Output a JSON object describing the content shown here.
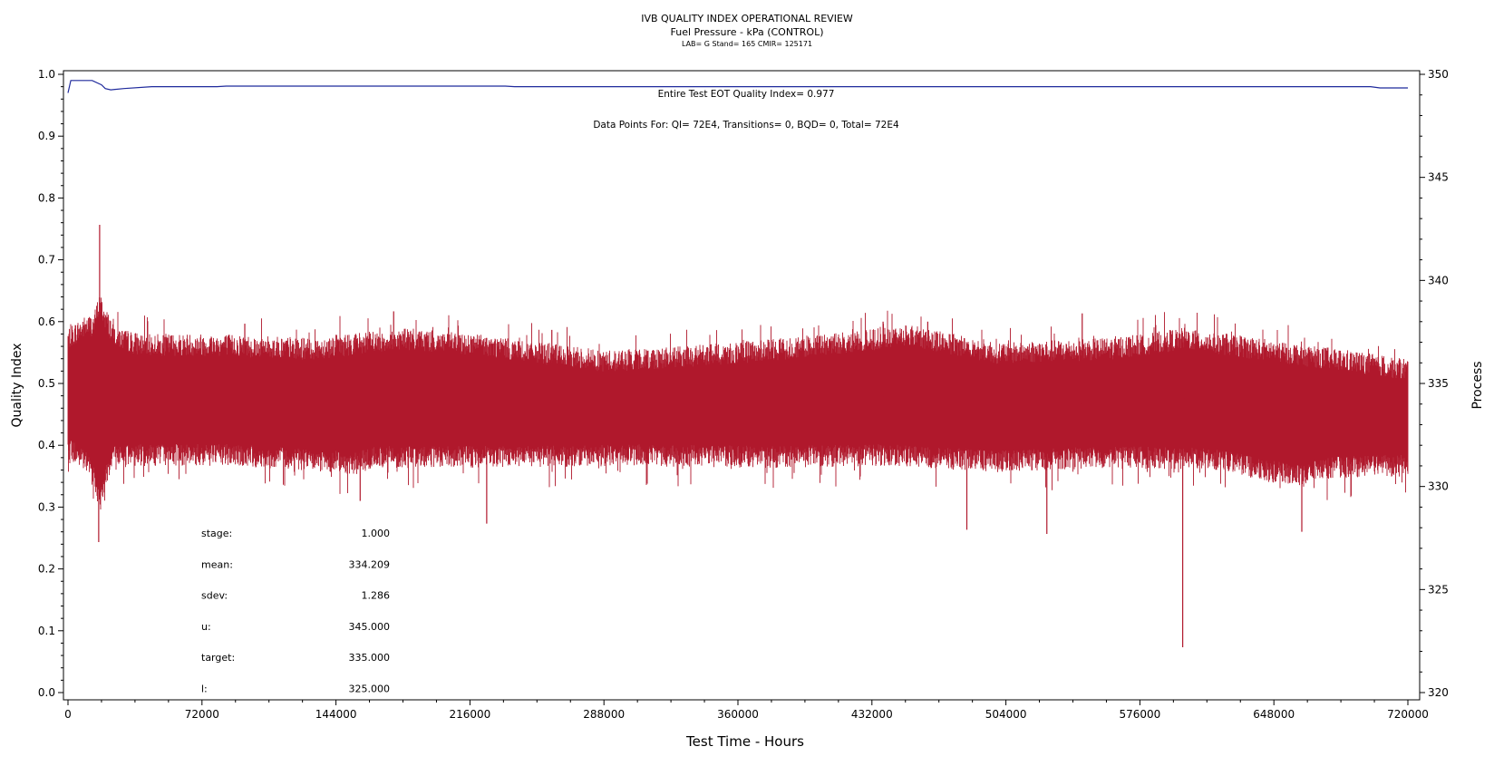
{
  "header": {
    "title": "IVB QUALITY INDEX OPERATIONAL REVIEW",
    "subtitle": "Fuel Pressure - kPa (CONTROL)",
    "info": "LAB= G Stand= 165 CMIR= 125171"
  },
  "annotations": {
    "eot_quality": "Entire Test EOT Quality Index=   0.977",
    "data_points": "Data Points For: QI=   72E4, Transitions=      0, BQD=      0, Total=   72E4"
  },
  "stats": [
    {
      "label": "stage:",
      "value": "1.000"
    },
    {
      "label": "mean:",
      "value": "334.209"
    },
    {
      "label": "sdev:",
      "value": "1.286"
    },
    {
      "label": "u:",
      "value": "345.000"
    },
    {
      "label": "target:",
      "value": "335.000"
    },
    {
      "label": "l:",
      "value": "325.000"
    }
  ],
  "chart_data": {
    "type": "line",
    "xlabel": "Test Time - Hours",
    "ylabel": "Quality Index",
    "y2label": "Process",
    "xlim": [
      0,
      720000
    ],
    "ylim": [
      0.0,
      1.0
    ],
    "y2lim": [
      320,
      350
    ],
    "x_ticks": [
      "0",
      "72000",
      "144000",
      "216000",
      "288000",
      "360000",
      "432000",
      "504000",
      "576000",
      "648000",
      "720000"
    ],
    "y_ticks": [
      "0.0",
      "0.1",
      "0.2",
      "0.3",
      "0.4",
      "0.5",
      "0.6",
      "0.7",
      "0.8",
      "0.9",
      "1.0"
    ],
    "y2_ticks": [
      "320",
      "325",
      "330",
      "335",
      "340",
      "345",
      "350"
    ],
    "series": [
      {
        "axis": "left",
        "color": "#1f2a9c",
        "points": [
          [
            0,
            0.97
          ],
          [
            1500,
            0.99
          ],
          [
            8000,
            0.99
          ],
          [
            13000,
            0.99
          ],
          [
            18000,
            0.983
          ],
          [
            20000,
            0.977
          ],
          [
            23000,
            0.975
          ],
          [
            30000,
            0.977
          ],
          [
            45000,
            0.98
          ],
          [
            80000,
            0.98
          ],
          [
            85000,
            0.981
          ],
          [
            235000,
            0.981
          ],
          [
            240000,
            0.98
          ],
          [
            700000,
            0.98
          ],
          [
            705000,
            0.978
          ],
          [
            720000,
            0.978
          ]
        ]
      },
      {
        "axis": "right",
        "color": "#b0182c",
        "band_hi": [
          [
            0,
            337.3
          ],
          [
            8000,
            337.8
          ],
          [
            14000,
            338.0
          ],
          [
            17000,
            339.0
          ],
          [
            20000,
            338.3
          ],
          [
            24000,
            337.6
          ],
          [
            30000,
            337.2
          ],
          [
            40000,
            337.0
          ],
          [
            80000,
            337.0
          ],
          [
            130000,
            336.8
          ],
          [
            180000,
            337.3
          ],
          [
            220000,
            337.0
          ],
          [
            290000,
            336.2
          ],
          [
            360000,
            336.6
          ],
          [
            430000,
            337.2
          ],
          [
            450000,
            337.5
          ],
          [
            500000,
            336.6
          ],
          [
            560000,
            336.8
          ],
          [
            600000,
            337.3
          ],
          [
            640000,
            336.8
          ],
          [
            680000,
            336.3
          ],
          [
            720000,
            335.8
          ]
        ],
        "band_lo": [
          [
            0,
            331.7
          ],
          [
            8000,
            331.2
          ],
          [
            14000,
            330.5
          ],
          [
            17000,
            329.0
          ],
          [
            20000,
            330.3
          ],
          [
            25000,
            331.3
          ],
          [
            40000,
            331.4
          ],
          [
            90000,
            331.4
          ],
          [
            155000,
            331.0
          ],
          [
            165000,
            331.3
          ],
          [
            220000,
            331.3
          ],
          [
            300000,
            331.4
          ],
          [
            380000,
            331.3
          ],
          [
            440000,
            331.4
          ],
          [
            500000,
            331.1
          ],
          [
            560000,
            331.3
          ],
          [
            620000,
            331.2
          ],
          [
            640000,
            330.7
          ],
          [
            660000,
            330.4
          ],
          [
            680000,
            330.8
          ],
          [
            720000,
            330.9
          ]
        ],
        "spikes": [
          [
            17000,
            342.7
          ],
          [
            16500,
            327.3
          ],
          [
            175000,
            338.5
          ],
          [
            157000,
            329.3
          ],
          [
            225000,
            328.2
          ],
          [
            600000,
            337.7
          ],
          [
            599000,
            322.2
          ],
          [
            663000,
            327.8
          ],
          [
            483000,
            327.9
          ],
          [
            526000,
            327.7
          ],
          [
            95000,
            337.9
          ],
          [
            462000,
            338.0
          ],
          [
            438000,
            338.0
          ],
          [
            545000,
            338.4
          ],
          [
            260000,
            337.6
          ]
        ]
      }
    ]
  }
}
